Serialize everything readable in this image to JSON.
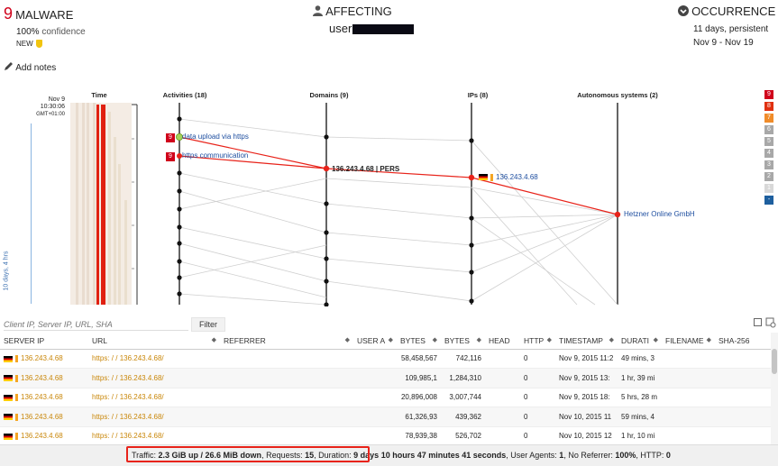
{
  "header": {
    "severity_number": "9",
    "threat_title": "MALWARE",
    "confidence_value": "100%",
    "confidence_label": "confidence",
    "status_badge": "NEW",
    "affecting_label": "AFFECTING",
    "affecting_user": "user",
    "occurrence_label": "OCCURRENCE",
    "duration_days": "11 days",
    "duration_type": ", persistent",
    "date_range": "Nov 9 - Nov 19",
    "add_notes_label": "Add notes"
  },
  "graph": {
    "time_col_label": "Time",
    "activities_label": "Activities (18)",
    "domains_label": "Domains (9)",
    "ips_label": "IPs (8)",
    "asn_label": "Autonomous systems (2)",
    "time_date": "Nov 9",
    "time_clock": "10:30:06",
    "time_zone": "GMT+01:00",
    "time_span": "10 days, 4 hrs",
    "activity_1": {
      "severity": "9",
      "label": "data upload via https"
    },
    "activity_2": {
      "severity": "9",
      "label": "https communication"
    },
    "domain_label": "136.243.4.68 | PERS",
    "ip_label": "136.243.4.68",
    "asn_node_label": "Hetzner Online GmbH",
    "severity_legend": [
      "9",
      "8",
      "7",
      "6",
      "5",
      "4",
      "3",
      "2",
      "1",
      "-"
    ],
    "colors": {
      "highlight": "#e8231a",
      "node": "#111111",
      "selected_node": "#a6d15a",
      "edge": "#c8c8c8"
    }
  },
  "filter": {
    "placeholder": "Client IP, Server IP, URL, SHA",
    "button_label": "Filter"
  },
  "table": {
    "columns": [
      "SERVER IP",
      "URL",
      "REFERRER",
      "USER A",
      "BYTES",
      "BYTES",
      "HEAD",
      "HTTP",
      "TIMESTAMP",
      "DURATI",
      "FILENAME",
      "SHA-256"
    ],
    "rows": [
      {
        "server_ip": "136.243.4.68",
        "url_prefix": "https: / / ",
        "url_host": "136.243.4.68",
        "url_suffix": "/",
        "bytes_up": "58,458,567",
        "bytes_down": "742,116",
        "http": "0",
        "timestamp": "Nov 9, 2015 11:2",
        "duration": "49 mins, 3"
      },
      {
        "server_ip": "136.243.4.68",
        "url_prefix": "https: / / ",
        "url_host": "136.243.4.68",
        "url_suffix": "/",
        "bytes_up": "109,985,1",
        "bytes_down": "1,284,310",
        "http": "0",
        "timestamp": "Nov 9, 2015 13:",
        "duration": "1 hr, 39 mi"
      },
      {
        "server_ip": "136.243.4.68",
        "url_prefix": "https: / / ",
        "url_host": "136.243.4.68",
        "url_suffix": "/",
        "bytes_up": "20,896,008",
        "bytes_down": "3,007,744",
        "http": "0",
        "timestamp": "Nov 9, 2015 18:",
        "duration": "5 hrs, 28 m"
      },
      {
        "server_ip": "136.243.4.68",
        "url_prefix": "https: / / ",
        "url_host": "136.243.4.68",
        "url_suffix": "/",
        "bytes_up": "61,326,93",
        "bytes_down": "439,362",
        "http": "0",
        "timestamp": "Nov 10, 2015 11",
        "duration": "59 mins, 4"
      },
      {
        "server_ip": "136.243.4.68",
        "url_prefix": "https: / / ",
        "url_host": "136.243.4.68",
        "url_suffix": "/",
        "bytes_up": "78,939,38",
        "bytes_down": "526,702",
        "http": "0",
        "timestamp": "Nov 10, 2015 12",
        "duration": "1 hr, 10 mi"
      }
    ]
  },
  "footer": {
    "traffic_label": "Traffic:",
    "traffic_value": "2.3 GiB up / 26.6 MiB down",
    "requests_label": ", Requests:",
    "requests_value": "15",
    "duration_label": ", Duration:",
    "duration_value": "9 days 10 hours 47 minutes 41 seconds",
    "agents_label": ", User Agents:",
    "agents_value": "1",
    "noref_label": ", No Referrer:",
    "noref_value": "100%",
    "http_label": ", HTTP:",
    "http_value": "0"
  }
}
